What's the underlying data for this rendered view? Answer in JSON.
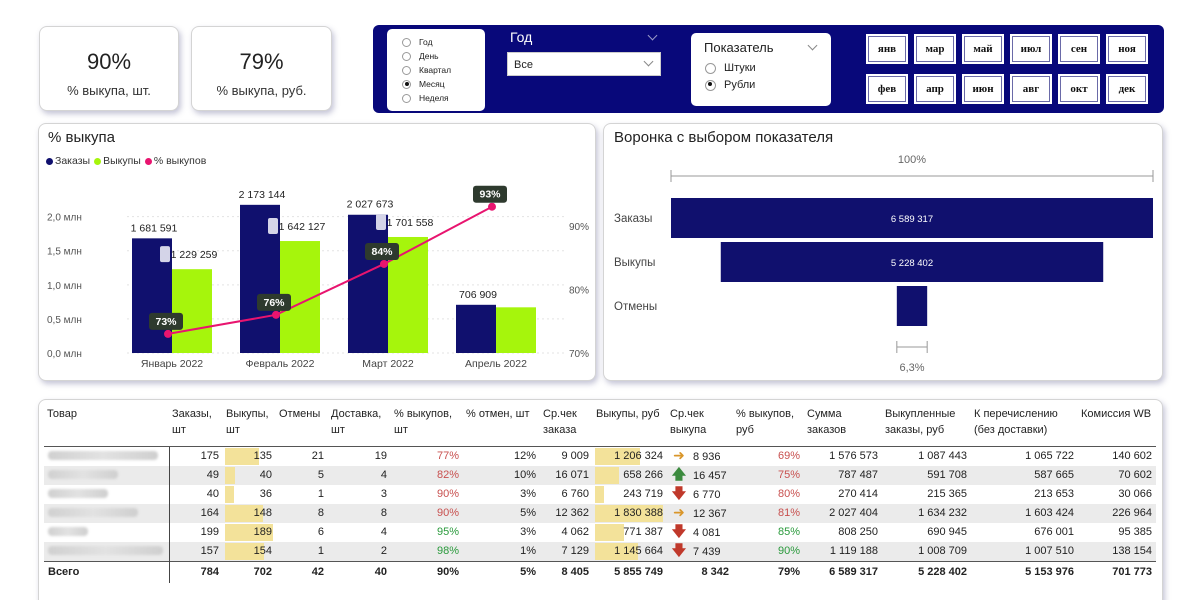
{
  "kpis": [
    {
      "value": "90%",
      "label": "% выкупа, шт."
    },
    {
      "value": "79%",
      "label": "% выкупа, руб."
    }
  ],
  "period": {
    "options": [
      "Год",
      "День",
      "Квартал",
      "Месяц",
      "Неделя"
    ],
    "selected": "Месяц"
  },
  "year_slicer": {
    "title": "Год",
    "value": "Все"
  },
  "indicator": {
    "title": "Показатель",
    "options": [
      "Штуки",
      "Рубли"
    ],
    "selected": "Рубли"
  },
  "months": {
    "row1": [
      "янв",
      "мар",
      "май",
      "июл",
      "сен",
      "ноя"
    ],
    "row2": [
      "фев",
      "апр",
      "июн",
      "авг",
      "окт",
      "дек"
    ]
  },
  "colors": {
    "orders": "#10106e",
    "buyouts": "#a6f50c",
    "rate": "#e8146f",
    "accent": "#08087a"
  },
  "chart_data": [
    {
      "type": "bar",
      "title": "% выкупа",
      "legend": [
        "Заказы",
        "Выкупы",
        "% выкупов"
      ],
      "categories": [
        "Январь 2022",
        "Февраль 2022",
        "Март 2022",
        "Апрель 2022"
      ],
      "series": [
        {
          "name": "Заказы",
          "values": [
            1681591,
            2173144,
            2027673,
            706909
          ],
          "labels": [
            "1 681 591",
            "2 173 144",
            "2 027 673",
            "706 909"
          ]
        },
        {
          "name": "Выкупы",
          "values": [
            1229259,
            1642127,
            1701558,
            670000
          ],
          "labels": [
            "1 229 259",
            "1 642 127",
            "1 701 558",
            ""
          ]
        },
        {
          "name": "% выкупов",
          "axis": "right",
          "values": [
            73,
            76,
            84,
            93
          ],
          "labels": [
            "73%",
            "76%",
            "84%",
            "93%"
          ]
        }
      ],
      "ylim": [
        0,
        2200000
      ],
      "yticks": [
        "0,0 млн",
        "0,5 млн",
        "1,0 млн",
        "1,5 млн",
        "2,0 млн"
      ],
      "y2lim": [
        70,
        95
      ],
      "y2ticks": [
        "70%",
        "80%",
        "90%"
      ]
    },
    {
      "type": "funnel",
      "title": "Воронка с выбором показателя",
      "top_label": "100%",
      "bottom_label": "6,3%",
      "categories": [
        "Заказы",
        "Выкупы",
        "Отмены"
      ],
      "values": [
        6589317,
        5228402,
        415000
      ],
      "labels": [
        "6 589 317",
        "5 228 402",
        ""
      ]
    }
  ],
  "table": {
    "headers": [
      "Товар",
      "Заказы, шт",
      "Выкупы, шт",
      "Отмены",
      "Доставка, шт",
      "% выкупов, шт",
      "% отмен, шт",
      "Ср.чек заказа",
      "Выкупы, руб",
      "Ср.чек выкупа",
      "% выкупов, руб",
      "Сумма заказов",
      "Выкупленные заказы, руб",
      "К перечислению (без доставки)",
      "Комиссия WB"
    ],
    "rows": [
      {
        "orders": "175",
        "buyouts": "135",
        "buyouts_n": 135,
        "cancels": "21",
        "delivery": "19",
        "pct": "77%",
        "pct_class": "red",
        "cancel_pct": "12%",
        "avg_order": "9 009",
        "buyouts_rub": "1 206 324",
        "buyouts_rub_n": 1206324,
        "arrow": "right",
        "avg_buyout": "8 936",
        "pct_rub": "69%",
        "pct_rub_class": "red",
        "sum_orders": "1 576 573",
        "bought_rub": "1 087 443",
        "transfer": "1 065 722",
        "commission": "140 602"
      },
      {
        "orders": "49",
        "buyouts": "40",
        "buyouts_n": 40,
        "cancels": "5",
        "delivery": "4",
        "pct": "82%",
        "pct_class": "red",
        "cancel_pct": "10%",
        "avg_order": "16 071",
        "buyouts_rub": "658 266",
        "buyouts_rub_n": 658266,
        "arrow": "up",
        "avg_buyout": "16 457",
        "pct_rub": "75%",
        "pct_rub_class": "red",
        "sum_orders": "787 487",
        "bought_rub": "591 708",
        "transfer": "587 665",
        "commission": "70 602"
      },
      {
        "orders": "40",
        "buyouts": "36",
        "buyouts_n": 36,
        "cancels": "1",
        "delivery": "3",
        "pct": "90%",
        "pct_class": "red",
        "cancel_pct": "3%",
        "avg_order": "6 760",
        "buyouts_rub": "243 719",
        "buyouts_rub_n": 243719,
        "arrow": "down",
        "avg_buyout": "6 770",
        "pct_rub": "80%",
        "pct_rub_class": "red",
        "sum_orders": "270 414",
        "bought_rub": "215 365",
        "transfer": "213 653",
        "commission": "30 066"
      },
      {
        "orders": "164",
        "buyouts": "148",
        "buyouts_n": 148,
        "cancels": "8",
        "delivery": "8",
        "pct": "90%",
        "pct_class": "red",
        "cancel_pct": "5%",
        "avg_order": "12 362",
        "buyouts_rub": "1 830 388",
        "buyouts_rub_n": 1830388,
        "arrow": "right",
        "avg_buyout": "12 367",
        "pct_rub": "81%",
        "pct_rub_class": "red",
        "sum_orders": "2 027 404",
        "bought_rub": "1 634 232",
        "transfer": "1 603 424",
        "commission": "226 964"
      },
      {
        "orders": "199",
        "buyouts": "189",
        "buyouts_n": 189,
        "cancels": "6",
        "delivery": "4",
        "pct": "95%",
        "pct_class": "green",
        "cancel_pct": "3%",
        "avg_order": "4 062",
        "buyouts_rub": "771 387",
        "buyouts_rub_n": 771387,
        "arrow": "down",
        "avg_buyout": "4 081",
        "pct_rub": "85%",
        "pct_rub_class": "green",
        "sum_orders": "808 250",
        "bought_rub": "690 945",
        "transfer": "676 001",
        "commission": "95 385"
      },
      {
        "orders": "157",
        "buyouts": "154",
        "buyouts_n": 154,
        "cancels": "1",
        "delivery": "2",
        "pct": "98%",
        "pct_class": "green",
        "cancel_pct": "1%",
        "avg_order": "7 129",
        "buyouts_rub": "1 145 664",
        "buyouts_rub_n": 1145664,
        "arrow": "down",
        "avg_buyout": "7 439",
        "pct_rub": "90%",
        "pct_rub_class": "green",
        "sum_orders": "1 119 188",
        "bought_rub": "1 008 709",
        "transfer": "1 007 510",
        "commission": "138 154"
      }
    ],
    "total": {
      "label": "Всего",
      "orders": "784",
      "buyouts": "702",
      "cancels": "42",
      "delivery": "40",
      "pct": "90%",
      "cancel_pct": "5%",
      "avg_order": "8 405",
      "buyouts_rub": "5 855 749",
      "avg_buyout": "8 342",
      "pct_rub": "79%",
      "sum_orders": "6 589 317",
      "bought_rub": "5 228 402",
      "transfer": "5 153 976",
      "commission": "701 773"
    }
  }
}
